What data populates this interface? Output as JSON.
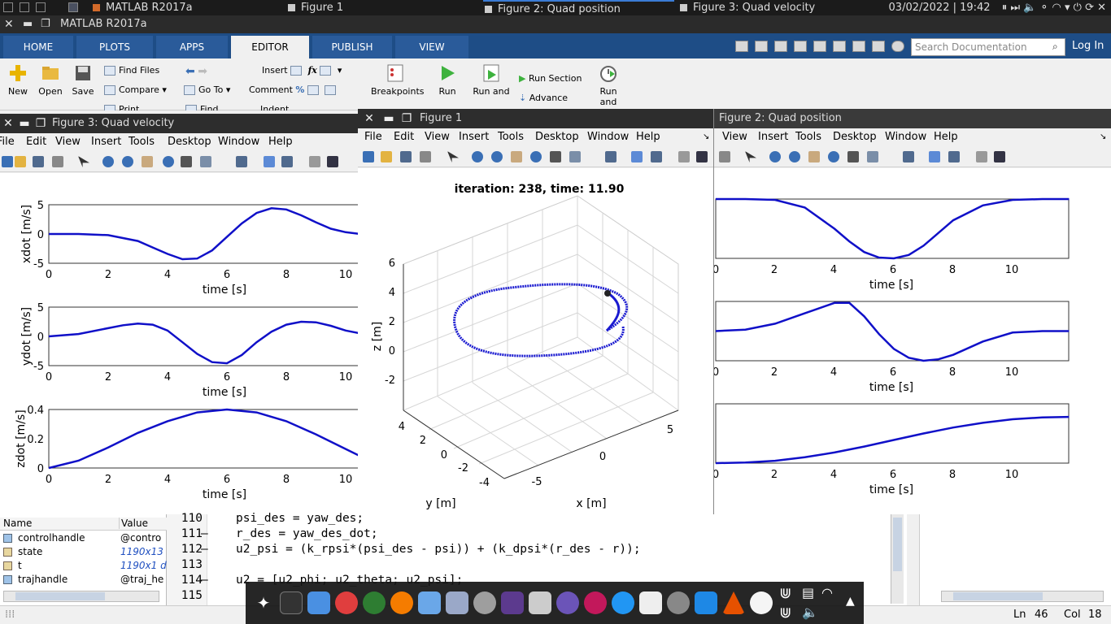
{
  "os_bar": {
    "tasks": [
      "MATLAB R2017a",
      "Figure 1",
      "Figure 2: Quad position",
      "Figure 3: Quad velocity"
    ],
    "datetime": "03/02/2022 | 19:42"
  },
  "app_title": "MATLAB R2017a",
  "ribbon_tabs": [
    "HOME",
    "PLOTS",
    "APPS",
    "EDITOR",
    "PUBLISH",
    "VIEW"
  ],
  "search_placeholder": "Search Documentation",
  "login_label": "Log In",
  "ribbon": {
    "new": "New",
    "open": "Open",
    "save": "Save",
    "find_files": "Find Files",
    "compare": "Compare",
    "print": "Print",
    "go_to": "Go To",
    "find": "Find",
    "insert": "Insert",
    "comment": "Comment",
    "indent": "Indent",
    "breakpoints": "Breakpoints",
    "run": "Run",
    "run_and": "Run and",
    "run_section": "Run Section",
    "advance": "Advance",
    "run_and2": "Run and"
  },
  "menus": [
    "File",
    "Edit",
    "View",
    "Insert",
    "Tools",
    "Desktop",
    "Window",
    "Help"
  ],
  "fig3": {
    "title": "Figure 3: Quad velocity",
    "plots": [
      {
        "ylabel": "xdot [m/s]",
        "yticks": [
          "5",
          "0",
          "-5"
        ],
        "xlabel": "time [s]"
      },
      {
        "ylabel": "ydot [m/s]",
        "yticks": [
          "5",
          "0",
          "-5"
        ],
        "xlabel": "time [s]"
      },
      {
        "ylabel": "zdot [m/s]",
        "yticks": [
          "0.4",
          "0.2",
          "0"
        ],
        "xlabel": "time [s]"
      }
    ],
    "xticks": [
      "0",
      "2",
      "4",
      "6",
      "8",
      "10"
    ]
  },
  "fig1": {
    "title": "Figure 1",
    "plot_title": "iteration: 238, time: 11.90",
    "zlabel": "z [m]",
    "ylabel": "y [m]",
    "xlabel": "x [m]",
    "zticks": [
      "6",
      "4",
      "2",
      "0",
      "-2"
    ],
    "yticks": [
      "4",
      "2",
      "0",
      "-2",
      "-4"
    ],
    "xticks": [
      "-5",
      "0",
      "5"
    ]
  },
  "fig2": {
    "title": "Figure 2: Quad position",
    "xlabel": "time [s]",
    "xticks": [
      "0",
      "2",
      "4",
      "6",
      "8",
      "10"
    ]
  },
  "workspace": {
    "headers": [
      "Name",
      "Value"
    ],
    "rows": [
      {
        "name": "controlhandle",
        "value": "@contro"
      },
      {
        "name": "state",
        "value": "1190x13"
      },
      {
        "name": "t",
        "value": "1190x1 d"
      },
      {
        "name": "trajhandle",
        "value": "@traj_he"
      }
    ]
  },
  "editor": {
    "lines": [
      {
        "num": "110",
        "code": "psi_des = yaw_des;"
      },
      {
        "num": "111",
        "code": "r_des = yaw_des_dot;"
      },
      {
        "num": "112",
        "code": "u2_psi = (k_rpsi*(psi_des - psi)) + (k_dpsi*(r_des - r));"
      },
      {
        "num": "113",
        "code": ""
      },
      {
        "num": "114",
        "code": "u2 = [u2_phi; u2_theta; u2_psi];"
      },
      {
        "num": "115",
        "code": ""
      }
    ]
  },
  "status": {
    "ln_label": "Ln",
    "ln": "46",
    "col_label": "Col",
    "col": "18"
  },
  "chart_data": [
    {
      "type": "line",
      "title": "",
      "xlabel": "time [s]",
      "ylabel": "xdot [m/s]",
      "xlim": [
        0,
        10.5
      ],
      "ylim": [
        -5,
        5
      ],
      "series": [
        {
          "x": [
            0,
            1,
            2,
            3,
            3.5,
            4,
            4.5,
            5,
            5.5,
            6,
            6.5,
            7,
            7.5,
            8,
            8.5,
            9,
            9.5,
            10,
            10.5
          ],
          "y": [
            0,
            0,
            -0.2,
            -1.2,
            -2.3,
            -3.4,
            -4.3,
            -4.2,
            -2.8,
            -0.5,
            1.8,
            3.6,
            4.4,
            4.2,
            3.2,
            2,
            0.9,
            0.3,
            0
          ]
        }
      ]
    },
    {
      "type": "line",
      "title": "",
      "xlabel": "time [s]",
      "ylabel": "ydot [m/s]",
      "xlim": [
        0,
        10.5
      ],
      "ylim": [
        -5,
        5
      ],
      "series": [
        {
          "x": [
            0,
            1,
            2,
            2.5,
            3,
            3.5,
            4,
            4.5,
            5,
            5.5,
            6,
            6.5,
            7,
            7.5,
            8,
            8.5,
            9,
            9.5,
            10,
            10.5
          ],
          "y": [
            0,
            0.4,
            1.4,
            1.9,
            2.2,
            2,
            1,
            -1,
            -3,
            -4.4,
            -4.6,
            -3.2,
            -1,
            0.8,
            2,
            2.5,
            2.4,
            1.8,
            1,
            0.5
          ]
        }
      ]
    },
    {
      "type": "line",
      "title": "",
      "xlabel": "time [s]",
      "ylabel": "zdot [m/s]",
      "xlim": [
        0,
        10.5
      ],
      "ylim": [
        0,
        0.4
      ],
      "series": [
        {
          "x": [
            0,
            1,
            2,
            3,
            4,
            5,
            6,
            7,
            8,
            9,
            10,
            10.5
          ],
          "y": [
            0,
            0.05,
            0.14,
            0.24,
            0.32,
            0.38,
            0.4,
            0.38,
            0.32,
            0.23,
            0.13,
            0.08
          ]
        }
      ]
    },
    {
      "type": "line",
      "title": "",
      "xlabel": "time [s]",
      "ylabel": "",
      "xlim": [
        0,
        11.9
      ],
      "ylim": [
        -1,
        0.4
      ],
      "series": [
        {
          "x": [
            0,
            1,
            2,
            3,
            4,
            4.5,
            5,
            5.5,
            6,
            6.5,
            7,
            7.5,
            8,
            9,
            10,
            11,
            11.9
          ],
          "y": [
            0.4,
            0.4,
            0.38,
            0.2,
            -0.3,
            -0.6,
            -0.85,
            -0.98,
            -1,
            -0.92,
            -0.7,
            -0.4,
            -0.1,
            0.25,
            0.38,
            0.4,
            0.4
          ]
        }
      ]
    },
    {
      "type": "line",
      "title": "",
      "xlabel": "time [s]",
      "ylabel": "",
      "xlim": [
        0,
        11.9
      ],
      "ylim": [
        -1,
        1
      ],
      "series": [
        {
          "x": [
            0,
            1,
            2,
            3,
            4,
            4.5,
            5,
            5.5,
            6,
            6.5,
            7,
            7.5,
            8,
            9,
            10,
            11,
            11.9
          ],
          "y": [
            0,
            0.05,
            0.25,
            0.6,
            0.95,
            0.95,
            0.5,
            -0.1,
            -0.6,
            -0.9,
            -1,
            -0.95,
            -0.8,
            -0.35,
            -0.05,
            0,
            0
          ]
        }
      ]
    },
    {
      "type": "line",
      "title": "",
      "xlabel": "time [s]",
      "ylabel": "",
      "xlim": [
        0,
        11.9
      ],
      "ylim": [
        0,
        1
      ],
      "series": [
        {
          "x": [
            0,
            1,
            2,
            3,
            4,
            5,
            6,
            7,
            8,
            9,
            10,
            11,
            11.9
          ],
          "y": [
            0,
            0.01,
            0.04,
            0.1,
            0.18,
            0.28,
            0.39,
            0.5,
            0.6,
            0.68,
            0.74,
            0.77,
            0.78
          ]
        }
      ]
    }
  ]
}
